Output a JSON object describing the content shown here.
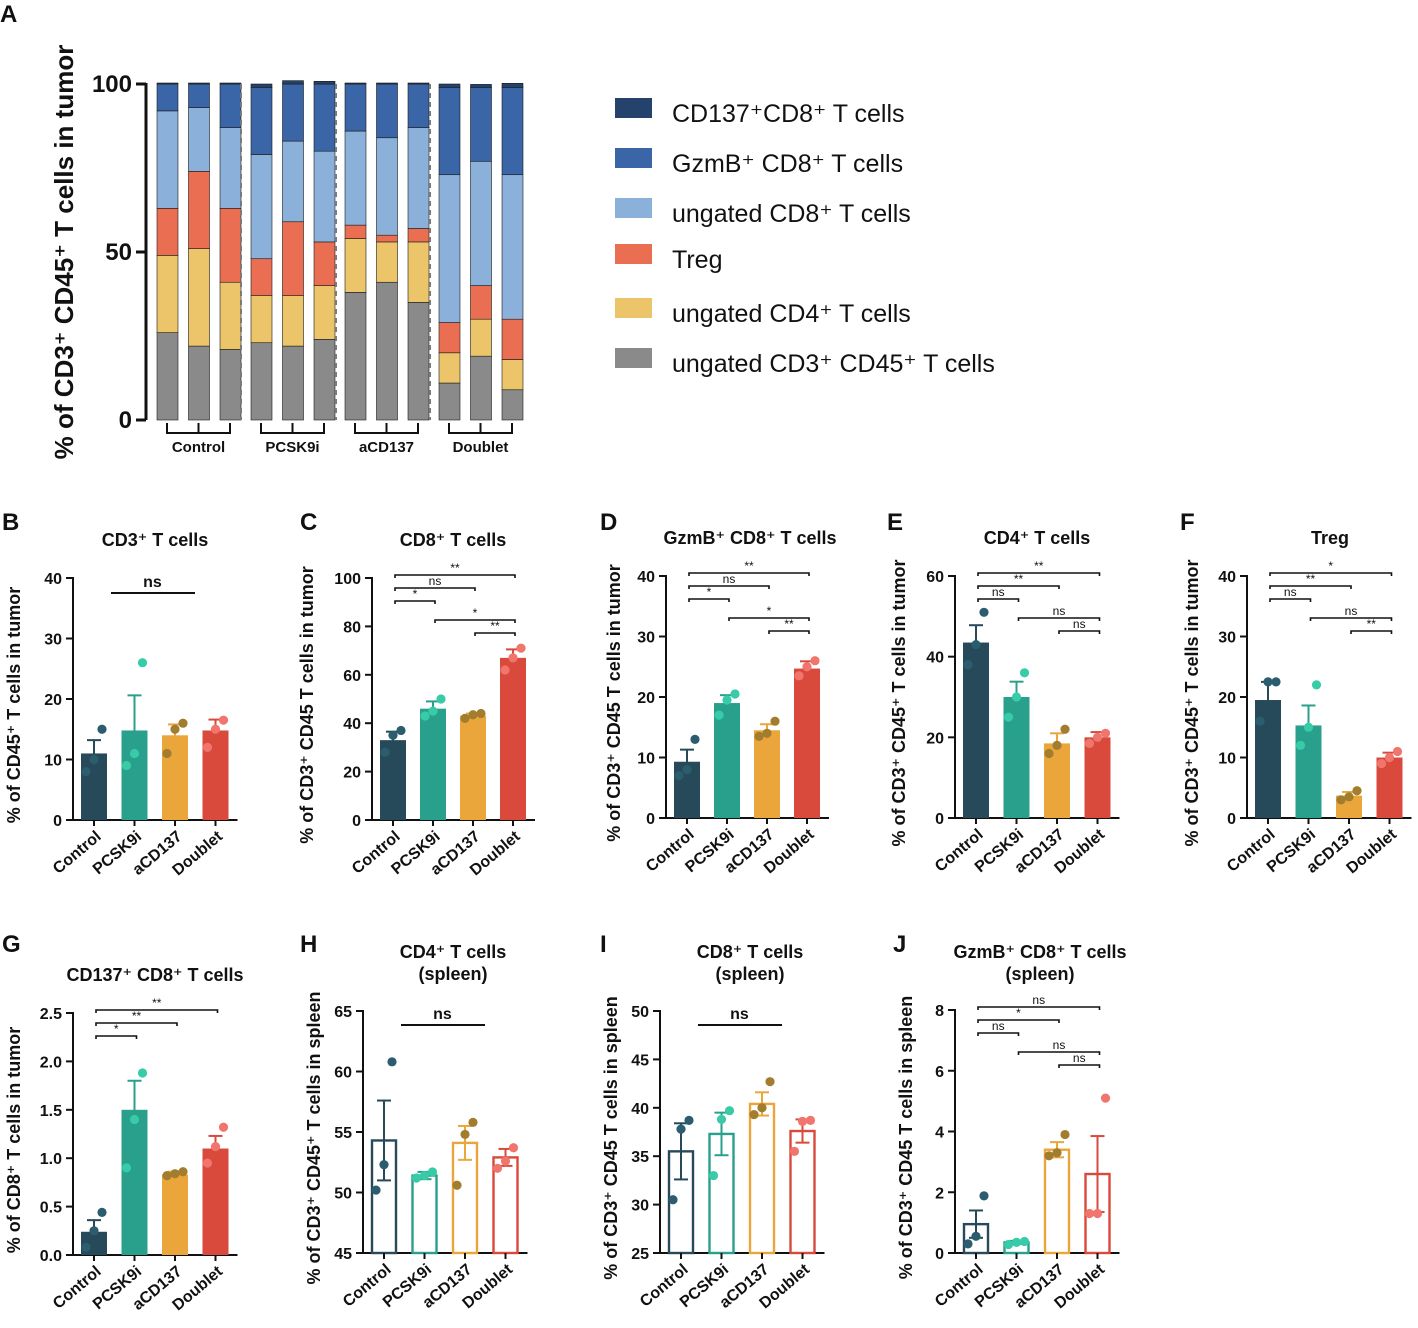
{
  "colors": {
    "dark": "#264a59",
    "teal": "#29a08b",
    "orange": "#eaa63a",
    "red": "#d94a3c",
    "dotDark": "#2b5d6e",
    "dotTeal": "#37cba8",
    "dotOrange": "#a27d2e",
    "dotRed": "#f0756c",
    "stack": [
      "#8a8a8a",
      "#ecc56a",
      "#ea6f52",
      "#8bb1db",
      "#3a65a6",
      "#24426b"
    ]
  },
  "chart_data": [
    {
      "id": "A",
      "label": "A",
      "type": "stacked-bar",
      "ylabel": "% of CD3⁺ CD45⁺ T cells in tumor",
      "ylim": [
        0,
        100
      ],
      "yticks": [
        "0",
        "50",
        "100"
      ],
      "groups": [
        "Control",
        "PCSK9i",
        "aCD137",
        "Doublet"
      ],
      "series_names": [
        "ungated CD3⁺ CD45⁺ T cells",
        "ungated CD4⁺ T cells",
        "Treg",
        "ungated CD8⁺ T cells",
        "GzmB⁺  CD8⁺ T cells",
        "CD137⁺CD8⁺ T cells"
      ],
      "bars": [
        [
          26,
          23,
          14,
          29,
          8,
          0.3
        ],
        [
          22,
          29,
          23,
          19,
          7,
          0.3
        ],
        [
          21,
          20,
          22,
          24,
          13,
          0.3
        ],
        [
          23,
          14,
          11,
          31,
          20,
          1.0
        ],
        [
          22,
          15,
          22,
          24,
          17,
          1.0
        ],
        [
          24,
          16,
          13,
          27,
          20,
          0.8
        ],
        [
          38,
          16,
          4,
          28,
          14,
          0.3
        ],
        [
          41,
          12,
          2,
          29,
          16,
          0.3
        ],
        [
          35,
          18,
          4,
          30,
          13,
          0.3
        ],
        [
          11,
          9,
          9,
          44,
          26,
          1.0
        ],
        [
          19,
          11,
          10,
          37,
          22,
          0.8
        ],
        [
          9,
          9,
          12,
          43,
          26,
          1.2
        ]
      ],
      "legend": [
        {
          "name": "CD137⁺CD8⁺ T cells",
          "color": "#24426b"
        },
        {
          "name": "GzmB⁺  CD8⁺ T cells",
          "color": "#3a65a6"
        },
        {
          "name": "ungated CD8⁺ T cells",
          "color": "#8bb1db"
        },
        {
          "name": "Treg",
          "color": "#ea6f52"
        },
        {
          "name": "ungated CD4⁺ T cells",
          "color": "#ecc56a"
        },
        {
          "name": "ungated CD3⁺ CD45⁺ T cells",
          "color": "#8a8a8a"
        }
      ]
    },
    {
      "id": "B",
      "label": "B",
      "type": "bar",
      "title": "CD3⁺ T cells",
      "ylabel": "% of CD45⁺ T cells in tumor",
      "ylim": [
        0,
        40
      ],
      "yticks": [
        "0",
        "10",
        "20",
        "30",
        "40"
      ],
      "categories": [
        "Control",
        "PCSK9i",
        "aCD137",
        "Doublet"
      ],
      "values": [
        11,
        14.8,
        14,
        14.8
      ],
      "sem": [
        2.2,
        5.8,
        1.8,
        1.8
      ],
      "points": [
        [
          8,
          10,
          15
        ],
        [
          9,
          11,
          26
        ],
        [
          11,
          15,
          16
        ],
        [
          12,
          15,
          16.5
        ]
      ],
      "hollow": false,
      "sig": [
        {
          "from": 0,
          "to": 2,
          "text": "ns",
          "big": true
        }
      ]
    },
    {
      "id": "C",
      "label": "C",
      "type": "bar",
      "title": "CD8⁺ T cells",
      "ylabel": "% of CD3⁺ CD45 T cells in tumor",
      "ylim": [
        0,
        100
      ],
      "yticks": [
        "0",
        "20",
        "40",
        "60",
        "80",
        "100"
      ],
      "categories": [
        "Control",
        "PCSK9i",
        "aCD137",
        "Doublet"
      ],
      "values": [
        33,
        46,
        43,
        67
      ],
      "sem": [
        3.5,
        3,
        1,
        3.5
      ],
      "points": [
        [
          28,
          35,
          37
        ],
        [
          43,
          45,
          50
        ],
        [
          42,
          43.5,
          44
        ],
        [
          62,
          67,
          71
        ]
      ],
      "hollow": false,
      "sig": [
        {
          "from": 0,
          "to": 3,
          "text": "**"
        },
        {
          "from": 0,
          "to": 2,
          "text": "ns"
        },
        {
          "from": 0,
          "to": 1,
          "text": "*"
        },
        {
          "from": 1,
          "to": 3,
          "text": "*"
        },
        {
          "from": 2,
          "to": 3,
          "text": "**"
        }
      ]
    },
    {
      "id": "D",
      "label": "D",
      "type": "bar",
      "title": "GzmB⁺ CD8⁺ T cells",
      "ylabel": "% of CD3⁺ CD45 T cells in tumor",
      "ylim": [
        0,
        40
      ],
      "yticks": [
        "0",
        "10",
        "20",
        "30",
        "40"
      ],
      "categories": [
        "Control",
        "PCSK9i",
        "aCD137",
        "Doublet"
      ],
      "values": [
        9.3,
        19,
        14.5,
        24.7
      ],
      "sem": [
        2,
        1.3,
        1,
        1.2
      ],
      "points": [
        [
          7,
          8,
          13
        ],
        [
          17,
          19.5,
          20.5
        ],
        [
          13.5,
          14,
          16
        ],
        [
          23.5,
          25,
          26
        ]
      ],
      "hollow": false,
      "sig": [
        {
          "from": 0,
          "to": 3,
          "text": "**"
        },
        {
          "from": 0,
          "to": 2,
          "text": "ns"
        },
        {
          "from": 0,
          "to": 1,
          "text": "*"
        },
        {
          "from": 1,
          "to": 3,
          "text": "*"
        },
        {
          "from": 2,
          "to": 3,
          "text": "**"
        }
      ]
    },
    {
      "id": "E",
      "label": "E",
      "type": "bar",
      "title": "CD4⁺ T cells",
      "ylabel": "% of CD3⁺ CD45⁺ T cells in tumor",
      "ylim": [
        0,
        60
      ],
      "yticks": [
        "0",
        "20",
        "40",
        "60"
      ],
      "categories": [
        "Control",
        "PCSK9i",
        "aCD137",
        "Doublet"
      ],
      "values": [
        43.5,
        30,
        18.5,
        20
      ],
      "sem": [
        4.3,
        3.8,
        2.5,
        1.3
      ],
      "points": [
        [
          38,
          43,
          51
        ],
        [
          25,
          30,
          36
        ],
        [
          16,
          18,
          22
        ],
        [
          18.5,
          20,
          21
        ]
      ],
      "hollow": false,
      "sig": [
        {
          "from": 0,
          "to": 3,
          "text": "**"
        },
        {
          "from": 0,
          "to": 2,
          "text": "**"
        },
        {
          "from": 0,
          "to": 1,
          "text": "ns"
        },
        {
          "from": 1,
          "to": 3,
          "text": "ns"
        },
        {
          "from": 2,
          "to": 3,
          "text": "ns"
        }
      ]
    },
    {
      "id": "F",
      "label": "F",
      "type": "bar",
      "title": "Treg",
      "ylabel": "% of CD3⁺ CD45⁺ T cells in tumor",
      "ylim": [
        0,
        40
      ],
      "yticks": [
        "0",
        "10",
        "20",
        "30",
        "40"
      ],
      "categories": [
        "Control",
        "PCSK9i",
        "aCD137",
        "Doublet"
      ],
      "values": [
        19.5,
        15.3,
        3.7,
        10
      ],
      "sem": [
        3,
        3.3,
        0.6,
        0.8
      ],
      "points": [
        [
          16,
          22.5,
          22.5
        ],
        [
          12,
          15,
          22
        ],
        [
          3,
          3.5,
          4.5
        ],
        [
          9,
          10,
          11
        ]
      ],
      "hollow": false,
      "sig": [
        {
          "from": 0,
          "to": 3,
          "text": "*"
        },
        {
          "from": 0,
          "to": 2,
          "text": "**"
        },
        {
          "from": 0,
          "to": 1,
          "text": "ns"
        },
        {
          "from": 1,
          "to": 3,
          "text": "ns"
        },
        {
          "from": 2,
          "to": 3,
          "text": "**"
        }
      ]
    },
    {
      "id": "G",
      "label": "G",
      "type": "bar",
      "title": "CD137⁺ CD8⁺ T cells",
      "ylabel": "% of CD8⁺ T cells in tumor",
      "ylim": [
        0,
        2.5
      ],
      "yticks": [
        "0.0",
        "0.5",
        "1.0",
        "1.5",
        "2.0",
        "2.5"
      ],
      "categories": [
        "Control",
        "PCSK9i",
        "aCD137",
        "Doublet"
      ],
      "values": [
        0.24,
        1.5,
        0.83,
        1.1
      ],
      "sem": [
        0.12,
        0.3,
        0.03,
        0.13
      ],
      "points": [
        [
          0.08,
          0.25,
          0.44
        ],
        [
          0.9,
          1.4,
          1.88
        ],
        [
          0.82,
          0.84,
          0.86
        ],
        [
          0.95,
          1.12,
          1.32
        ]
      ],
      "hollow": false,
      "sig": [
        {
          "from": 0,
          "to": 3,
          "text": "**"
        },
        {
          "from": 0,
          "to": 2,
          "text": "**"
        },
        {
          "from": 0,
          "to": 1,
          "text": "*"
        }
      ]
    },
    {
      "id": "H",
      "label": "H",
      "type": "bar",
      "title": "CD4⁺ T cells",
      "title2": "(spleen)",
      "ylabel": "% of CD3⁺ CD45⁺ T cells in spleen",
      "ylim": [
        45,
        65
      ],
      "yticks": [
        "45",
        "50",
        "55",
        "60",
        "65"
      ],
      "categories": [
        "Control",
        "PCSK9i",
        "aCD137",
        "Doublet"
      ],
      "values": [
        54.3,
        51.4,
        54.1,
        52.9
      ],
      "sem": [
        3.3,
        0.3,
        1.4,
        0.7
      ],
      "points": [
        [
          50.2,
          52.3,
          60.8
        ],
        [
          51.2,
          51.4,
          51.7
        ],
        [
          50.6,
          54.8,
          55.8
        ],
        [
          52,
          52.6,
          53.7
        ]
      ],
      "hollow": true,
      "sig": [
        {
          "from": 0,
          "to": 2,
          "text": "ns",
          "big": true
        }
      ]
    },
    {
      "id": "I",
      "label": "I",
      "type": "bar",
      "title": "CD8⁺ T cells",
      "title2": "(spleen)",
      "ylabel": "% of CD3⁺ CD45 T cells in spleen",
      "ylim": [
        25,
        50
      ],
      "yticks": [
        "25",
        "30",
        "35",
        "40",
        "45",
        "50"
      ],
      "categories": [
        "Control",
        "PCSK9i",
        "aCD137",
        "Doublet"
      ],
      "values": [
        35.5,
        37.3,
        40.4,
        37.6
      ],
      "sem": [
        2.9,
        2.2,
        1.2,
        1.2
      ],
      "points": [
        [
          30.5,
          37.8,
          38.7
        ],
        [
          33,
          38.8,
          39.7
        ],
        [
          39.3,
          40,
          42.7
        ],
        [
          35.5,
          38.6,
          38.7
        ]
      ],
      "hollow": true,
      "sig": [
        {
          "from": 0,
          "to": 2,
          "text": "ns",
          "big": true
        }
      ]
    },
    {
      "id": "J",
      "label": "J",
      "type": "bar",
      "title": "GzmB⁺ CD8⁺ T cells",
      "title2": "(spleen)",
      "ylabel": "% of CD3⁺ CD45 T cells in spleen",
      "ylim": [
        0,
        8
      ],
      "yticks": [
        "0",
        "2",
        "4",
        "6",
        "8"
      ],
      "categories": [
        "Control",
        "PCSK9i",
        "aCD137",
        "Doublet"
      ],
      "values": [
        0.95,
        0.35,
        3.4,
        2.6
      ],
      "sem": [
        0.45,
        0.05,
        0.25,
        1.25
      ],
      "points": [
        [
          0.3,
          0.55,
          1.88
        ],
        [
          0.28,
          0.35,
          0.38
        ],
        [
          3.2,
          3.3,
          3.9
        ],
        [
          1.3,
          1.3,
          5.1
        ]
      ],
      "hollow": true,
      "sig": [
        {
          "from": 0,
          "to": 3,
          "text": "ns"
        },
        {
          "from": 0,
          "to": 2,
          "text": "*"
        },
        {
          "from": 0,
          "to": 1,
          "text": "ns"
        },
        {
          "from": 1,
          "to": 3,
          "text": "ns"
        },
        {
          "from": 2,
          "to": 3,
          "text": "ns"
        }
      ]
    }
  ]
}
